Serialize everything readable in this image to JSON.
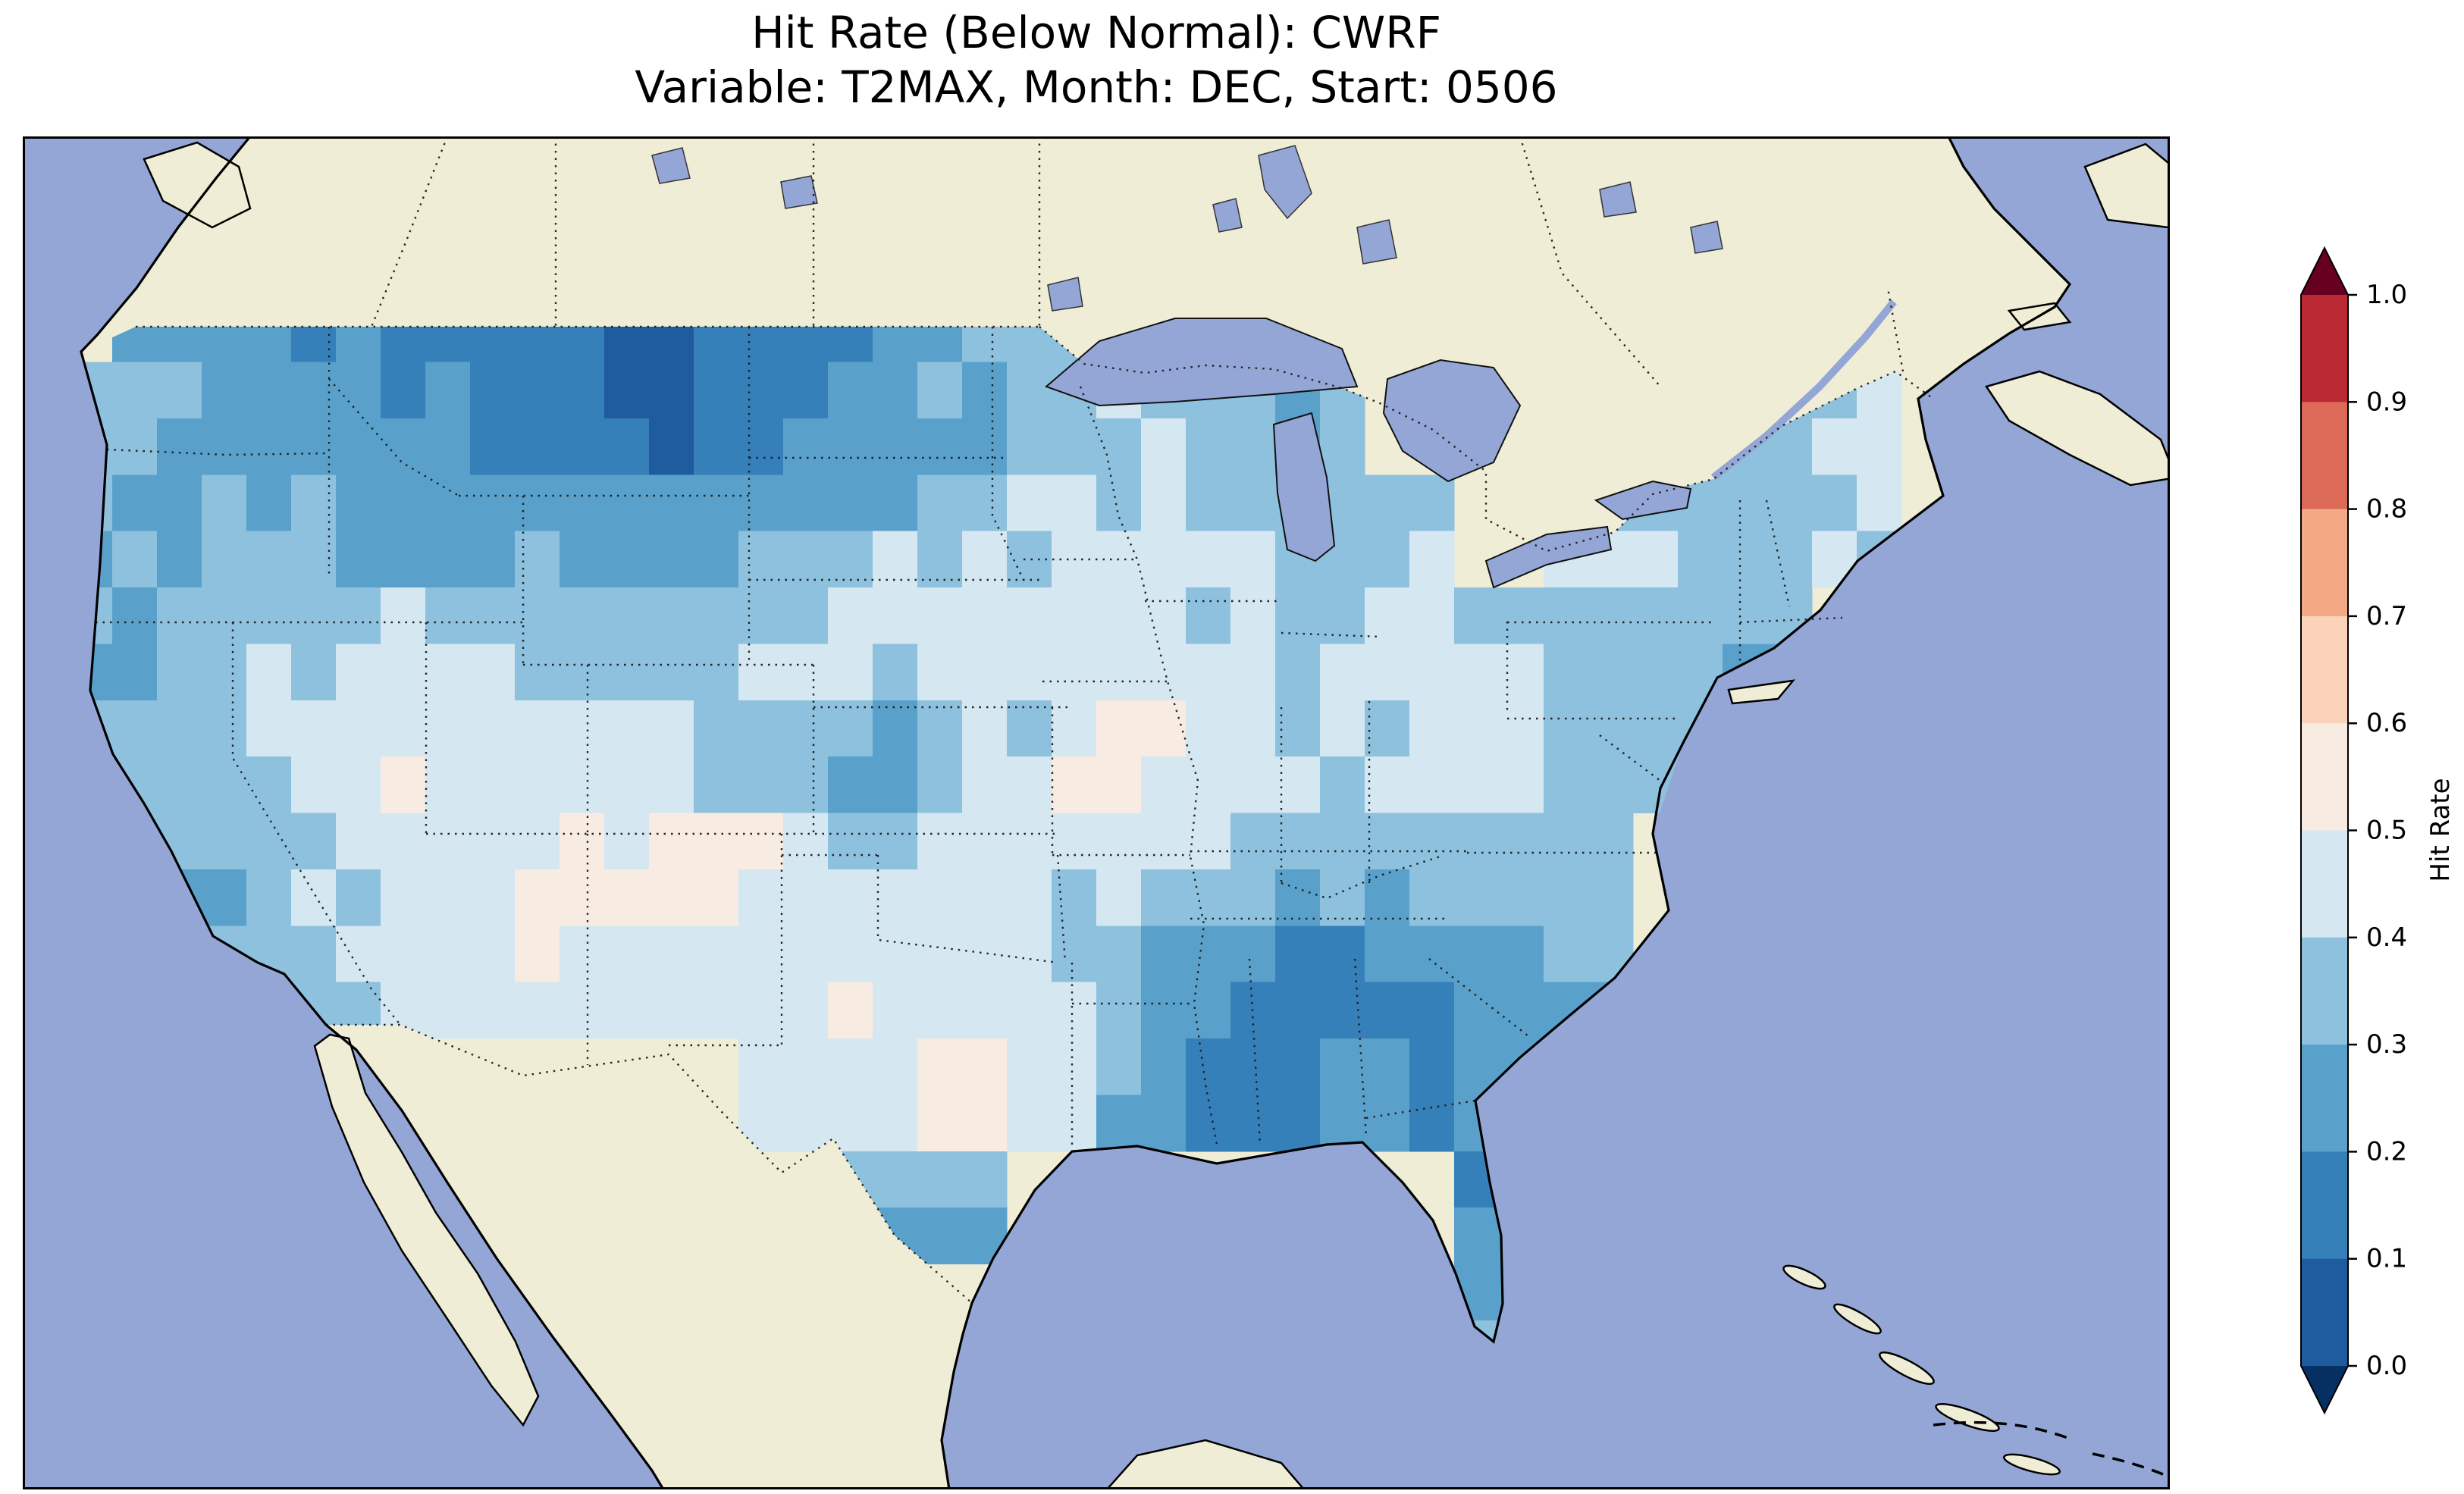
{
  "title": {
    "line1": "Hit Rate (Below Normal): CWRF",
    "line2": "Variable: T2MAX, Month: DEC, Start: 0506"
  },
  "chart_data": {
    "type": "heatmap",
    "title": "Hit Rate (Below Normal): CWRF",
    "subtitle": "Variable: T2MAX, Month: DEC, Start: 0506",
    "metric": "Hit Rate (Below Normal)",
    "model": "CWRF",
    "variable": "T2MAX",
    "month": "DEC",
    "start": "0506",
    "colorbar": {
      "label": "Hit Rate",
      "ticks": [
        1.0,
        0.9,
        0.8,
        0.7,
        0.6,
        0.5,
        0.4,
        0.3,
        0.2,
        0.1,
        0.0
      ],
      "tick_labels": [
        "1.0",
        "0.9",
        "0.8",
        "0.7",
        "0.6",
        "0.5",
        "0.4",
        "0.3",
        "0.2",
        "0.1",
        "0.0"
      ],
      "levels": [
        0.0,
        0.1,
        0.2,
        0.3,
        0.4,
        0.5,
        0.6,
        0.7,
        0.8,
        0.9,
        1.0
      ],
      "bin_colors": [
        "#1e5c9f",
        "#3580b9",
        "#59a1cb",
        "#8ec1dd",
        "#d5e7f1",
        "#f8ece2",
        "#fbd2ba",
        "#f3a983",
        "#dd6a57",
        "#bb2a33"
      ],
      "under": "#053061",
      "over": "#67001f",
      "extend": "both",
      "orientation": "vertical"
    },
    "map_colors": {
      "ocean": "#94a6d6",
      "land": "#f0edd6",
      "coastline": "#000000"
    },
    "grid": {
      "description": "Approximate hit-rate values on a coarse lon/lat grid over CONUS, row-major from north to south; null = no data (outside CONUS).",
      "lon_range": [
        -126.5,
        -60.0
      ],
      "lat_range": [
        21.5,
        53.5
      ],
      "cols": 24,
      "rows": 12,
      "values": [
        [
          null,
          null,
          null,
          null,
          null,
          null,
          null,
          null,
          null,
          null,
          null,
          null,
          null,
          null,
          null,
          null,
          null,
          null,
          null,
          null,
          null,
          null,
          null,
          null
        ],
        [
          null,
          0.3,
          0.25,
          0.12,
          0.18,
          0.15,
          0.1,
          0.1,
          0.12,
          0.2,
          0.28,
          0.32,
          0.35,
          null,
          null,
          null,
          null,
          null,
          null,
          null,
          null,
          null,
          null,
          null
        ],
        [
          0.35,
          0.3,
          0.25,
          0.28,
          0.22,
          0.15,
          0.1,
          0.12,
          0.15,
          0.22,
          0.3,
          0.35,
          0.4,
          0.35,
          0.3,
          null,
          null,
          null,
          null,
          0.35,
          0.4,
          null,
          null,
          null
        ],
        [
          0.3,
          0.32,
          0.35,
          0.3,
          0.28,
          0.25,
          0.28,
          0.25,
          0.3,
          0.35,
          0.4,
          0.45,
          0.42,
          0.45,
          0.35,
          0.35,
          null,
          0.4,
          0.38,
          0.35,
          0.4,
          null,
          null,
          null
        ],
        [
          0.25,
          0.3,
          0.35,
          0.4,
          0.45,
          0.4,
          0.35,
          0.3,
          0.45,
          0.48,
          0.45,
          0.4,
          0.45,
          0.4,
          0.45,
          0.45,
          0.4,
          0.35,
          0.35,
          0.3,
          null,
          null,
          null,
          null
        ],
        [
          0.3,
          0.35,
          0.4,
          0.45,
          0.48,
          0.45,
          0.45,
          0.4,
          0.35,
          0.2,
          0.35,
          0.45,
          0.6,
          0.45,
          0.4,
          0.45,
          0.4,
          0.35,
          0.4,
          null,
          null,
          null,
          null,
          null
        ],
        [
          null,
          0.3,
          0.35,
          0.4,
          0.45,
          0.48,
          0.52,
          0.6,
          0.48,
          0.45,
          0.48,
          0.45,
          0.4,
          0.38,
          0.32,
          0.3,
          0.35,
          0.35,
          null,
          null,
          null,
          null,
          null,
          null
        ],
        [
          null,
          null,
          0.35,
          0.4,
          0.45,
          0.48,
          0.45,
          0.48,
          0.45,
          0.48,
          0.45,
          0.4,
          0.3,
          0.2,
          0.12,
          0.18,
          0.25,
          0.3,
          null,
          null,
          null,
          null,
          null,
          null
        ],
        [
          null,
          null,
          null,
          null,
          null,
          null,
          null,
          null,
          0.45,
          0.5,
          0.58,
          0.48,
          0.25,
          0.12,
          0.18,
          0.2,
          0.25,
          null,
          null,
          null,
          null,
          null,
          null,
          null
        ],
        [
          null,
          null,
          null,
          null,
          null,
          null,
          null,
          null,
          null,
          0.3,
          0.22,
          null,
          null,
          null,
          null,
          null,
          0.2,
          0.25,
          null,
          null,
          null,
          null,
          null,
          null
        ],
        [
          null,
          null,
          null,
          null,
          null,
          null,
          null,
          null,
          null,
          null,
          null,
          null,
          null,
          null,
          null,
          null,
          0.3,
          null,
          null,
          null,
          null,
          null,
          null,
          null
        ],
        [
          null,
          null,
          null,
          null,
          null,
          null,
          null,
          null,
          null,
          null,
          null,
          null,
          null,
          null,
          null,
          null,
          null,
          null,
          null,
          null,
          null,
          null,
          null,
          null
        ]
      ]
    }
  }
}
